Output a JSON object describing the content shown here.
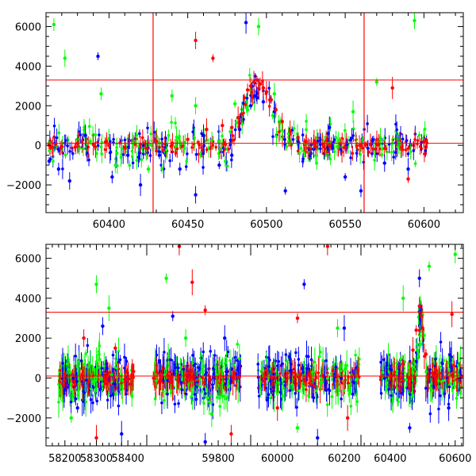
{
  "chart_data": [
    {
      "type": "scatter",
      "title": "",
      "xlabel": "",
      "ylabel": "",
      "xlim": [
        60360,
        60625
      ],
      "ylim": [
        -3400,
        6700
      ],
      "x_ticks": [
        "60400",
        "60450",
        "60500",
        "60550",
        "60600"
      ],
      "y_ticks": [
        "-2000",
        "0",
        "2000",
        "4000",
        "6000"
      ],
      "reference_lines": {
        "horizontal": [
          3300,
          100
        ],
        "vertical": [
          60428,
          60562
        ],
        "color": "#ff0000"
      },
      "series": [
        {
          "color": "#00ff00",
          "x": [
            60362,
            60365,
            60372,
            60380,
            60388,
            60395,
            60405,
            60415,
            60425,
            60440,
            60455,
            60470,
            60480,
            60488,
            60495,
            60505,
            60515,
            60525,
            60540,
            60555,
            60570,
            60580,
            60594
          ],
          "y": [
            100,
            6100,
            4400,
            300,
            200,
            2600,
            -400,
            100,
            -1200,
            2500,
            2000,
            200,
            2100,
            1800,
            6000,
            2600,
            200,
            100,
            100,
            1700,
            3200,
            100,
            6300
          ]
        },
        {
          "color": "#0000ff",
          "x": [
            60362,
            60368,
            60375,
            60385,
            60393,
            60402,
            60412,
            60420,
            60432,
            60445,
            60455,
            60460,
            60470,
            60478,
            60483,
            60487,
            60490,
            60494,
            60498,
            60505,
            60512,
            60520,
            60530,
            60540,
            60550,
            60560,
            60575,
            60590
          ],
          "y": [
            -800,
            -1200,
            -1800,
            500,
            4500,
            -1600,
            -500,
            -2000,
            -500,
            -1200,
            -2500,
            500,
            -1000,
            -500,
            800,
            6200,
            2000,
            2400,
            2200,
            1700,
            -2300,
            200,
            -200,
            900,
            -1600,
            -2300,
            -900,
            -1200
          ]
        },
        {
          "color": "#ff0000",
          "x": [
            60362,
            60370,
            60380,
            60390,
            60400,
            60410,
            60420,
            60430,
            60440,
            60450,
            60455,
            60462,
            60466,
            60472,
            60478,
            60482,
            60486,
            60488,
            60490,
            60492,
            60494,
            60496,
            60498,
            60500,
            60503,
            60506,
            60510,
            60515,
            60520,
            60525,
            60530,
            60540,
            60550,
            60560,
            60570,
            60580,
            60590,
            60600
          ],
          "y": [
            0,
            -50,
            100,
            50,
            0,
            -100,
            50,
            200,
            0,
            300,
            5300,
            800,
            4400,
            1000,
            900,
            1400,
            2400,
            2800,
            3000,
            3200,
            3300,
            3100,
            2900,
            2700,
            2300,
            1800,
            1200,
            700,
            400,
            200,
            100,
            0,
            -100,
            0,
            50,
            2900,
            -1700,
            200
          ]
        }
      ]
    },
    {
      "type": "scatter",
      "title": "",
      "xlabel": "",
      "ylabel": "",
      "broken_x_axis": true,
      "x_segments": [
        [
          58140,
          58460
        ],
        [
          59580,
          59900
        ],
        [
          59920,
          60250
        ],
        [
          60310,
          60625
        ]
      ],
      "ylim": [
        -3400,
        6700
      ],
      "x_ticks": [
        "58200",
        "58300",
        "58400",
        "59800",
        "60000",
        "60200",
        "60400",
        "60600"
      ],
      "y_ticks": [
        "-2000",
        "0",
        "2000",
        "4000",
        "6000"
      ],
      "reference_lines": {
        "horizontal": [
          3300,
          100
        ],
        "color": "#ff0000"
      },
      "data_ranges": [
        [
          58180,
          58420
        ],
        [
          59600,
          59870
        ],
        [
          59940,
          60245
        ],
        [
          60370,
          60620
        ]
      ],
      "series": [
        {
          "color": "#00ff00",
          "x": [
            58220,
            58300,
            58340,
            59640,
            59700,
            59780,
            60060,
            60180,
            60440,
            60520,
            60600
          ],
          "y": [
            -2000,
            4700,
            3500,
            5000,
            2000,
            -1800,
            -2500,
            2500,
            4000,
            5600,
            6200
          ]
        },
        {
          "color": "#0000ff",
          "x": [
            58240,
            58320,
            58380,
            59660,
            59760,
            59820,
            60080,
            60120,
            60200,
            60460,
            60490,
            60580
          ],
          "y": [
            -1500,
            2600,
            -2800,
            3100,
            -3200,
            2000,
            4700,
            -3000,
            2500,
            -2500,
            5000,
            -1500
          ]
        },
        {
          "color": "#ff0000",
          "x": [
            58200,
            58260,
            58300,
            58360,
            59680,
            59720,
            59760,
            59840,
            60000,
            60060,
            60150,
            60210,
            60400,
            60440,
            60470,
            60480,
            60490,
            60500,
            60510,
            60540,
            60590
          ],
          "y": [
            200,
            2000,
            -3000,
            1500,
            6600,
            4800,
            3400,
            -2800,
            -1500,
            3000,
            6600,
            -2000,
            100,
            700,
            1400,
            2400,
            3600,
            2500,
            1200,
            400,
            3200
          ]
        }
      ]
    }
  ]
}
